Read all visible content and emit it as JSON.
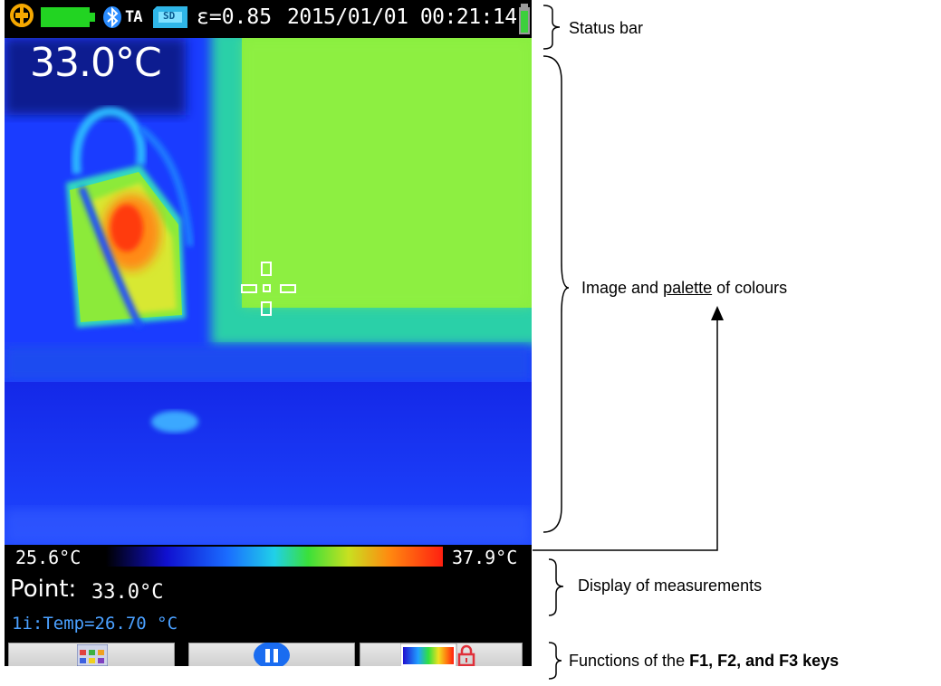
{
  "status_bar": {
    "emissivity": "ε=0.85",
    "datetime": "2015/01/01 00:21:14",
    "ta_icon_label": "TA",
    "sd_icon_label": "SD",
    "icons": [
      "power-icon",
      "battery-icon",
      "bluetooth-icon",
      "ta-icon",
      "sd-card-icon",
      "battery-small-icon"
    ]
  },
  "main_reading": "33.0°C",
  "palette": {
    "min_label": "25.6°C",
    "max_label": "37.9°C"
  },
  "measurements": {
    "point_label": "Point:",
    "point_value": "33.0°C",
    "temp_line": "1i:Temp=26.70 °C"
  },
  "function_keys": [
    {
      "key": "F1",
      "icon": "grid-menu-icon"
    },
    {
      "key": "F2",
      "icon": "pause-icon"
    },
    {
      "key": "F3",
      "icon": "palette-lock-icon"
    }
  ],
  "annotations": {
    "status_bar": "Status bar",
    "image_palette_prefix": "Image and ",
    "image_palette_underlined": "palette",
    "image_palette_suffix": " of colours",
    "display_measurements": "Display of measurements",
    "functions_prefix": "Functions of the ",
    "functions_bold": "F1, F2, and F3 keys"
  },
  "colors": {
    "thermal_blue": "#1a3aff",
    "thermal_green": "#8cf040",
    "thermal_red": "#ff3010",
    "pause_blue": "#1a6cf0",
    "temp_line_color": "#4aa0ff"
  }
}
